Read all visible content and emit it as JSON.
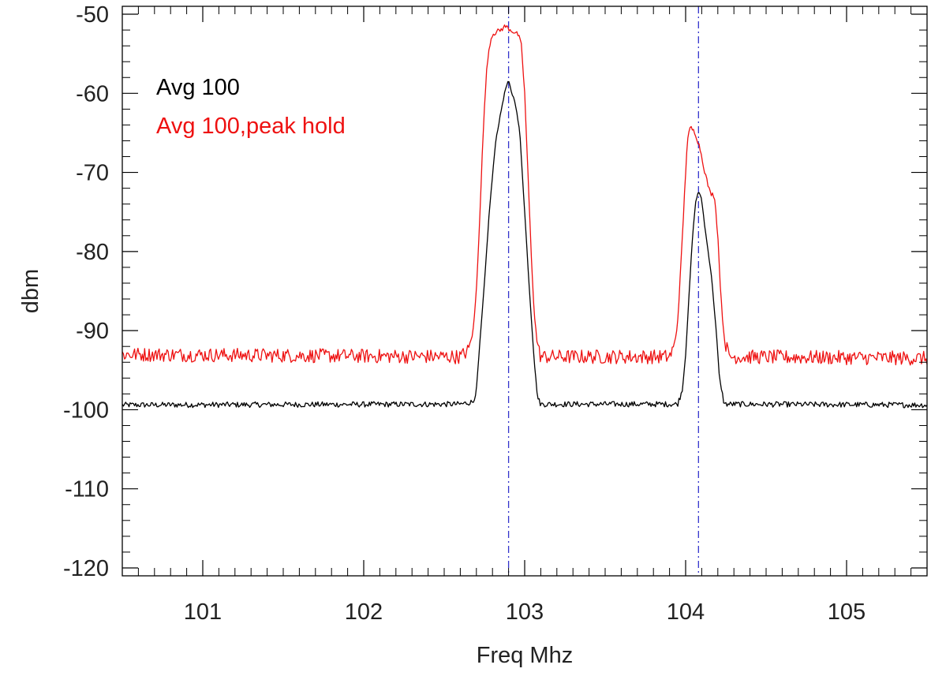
{
  "chart_data": {
    "type": "line",
    "xlabel": "Freq Mhz",
    "ylabel": "dbm",
    "xlim": [
      100.5,
      105.5
    ],
    "ylim": [
      -121,
      -49
    ],
    "x_ticks": [
      101,
      102,
      103,
      104,
      105
    ],
    "x_tick_labels": [
      "101",
      "102",
      "103",
      "104",
      "105"
    ],
    "y_ticks": [
      -50,
      -60,
      -70,
      -80,
      -90,
      -100,
      -110,
      -120
    ],
    "y_tick_labels": [
      "-50",
      "-60",
      "-70",
      "-80",
      "-90",
      "-100",
      "-110",
      "-120"
    ],
    "grid": false,
    "legend_position": "top-left",
    "vlines": [
      {
        "x": 102.9,
        "color": "#3333cc",
        "style": "dash-dot"
      },
      {
        "x": 104.08,
        "color": "#3333cc",
        "style": "dash-dot"
      }
    ],
    "series": [
      {
        "name": "Avg 100",
        "color": "#000000",
        "baseline": -99.3,
        "noise": 0.35,
        "points": [
          [
            100.5,
            -99.4
          ],
          [
            102.6,
            -99.3
          ],
          [
            102.68,
            -99.0
          ],
          [
            102.7,
            -97.5
          ],
          [
            102.72,
            -92.0
          ],
          [
            102.75,
            -84.0
          ],
          [
            102.78,
            -75.0
          ],
          [
            102.82,
            -66.0
          ],
          [
            102.86,
            -61.5
          ],
          [
            102.88,
            -59.5
          ],
          [
            102.9,
            -58.4
          ],
          [
            102.92,
            -60.0
          ],
          [
            102.94,
            -61.0
          ],
          [
            102.97,
            -65.0
          ],
          [
            103.0,
            -75.0
          ],
          [
            103.03,
            -85.0
          ],
          [
            103.06,
            -94.0
          ],
          [
            103.08,
            -98.5
          ],
          [
            103.1,
            -99.3
          ],
          [
            103.95,
            -99.3
          ],
          [
            103.98,
            -97.5
          ],
          [
            104.0,
            -93.0
          ],
          [
            104.02,
            -86.0
          ],
          [
            104.04,
            -79.0
          ],
          [
            104.06,
            -74.0
          ],
          [
            104.08,
            -72.3
          ],
          [
            104.1,
            -73.5
          ],
          [
            104.12,
            -77.0
          ],
          [
            104.14,
            -80.0
          ],
          [
            104.16,
            -83.0
          ],
          [
            104.19,
            -90.0
          ],
          [
            104.21,
            -96.0
          ],
          [
            104.24,
            -99.3
          ],
          [
            105.5,
            -99.4
          ]
        ]
      },
      {
        "name": "Avg 100,peak hold",
        "color": "#ee1111",
        "baseline": -93.3,
        "noise": 0.9,
        "points": [
          [
            100.5,
            -93.0
          ],
          [
            102.6,
            -93.3
          ],
          [
            102.65,
            -92.5
          ],
          [
            102.68,
            -90.0
          ],
          [
            102.7,
            -85.0
          ],
          [
            102.72,
            -76.0
          ],
          [
            102.74,
            -66.0
          ],
          [
            102.76,
            -58.0
          ],
          [
            102.78,
            -54.0
          ],
          [
            102.8,
            -52.5
          ],
          [
            102.85,
            -52.0
          ],
          [
            102.88,
            -51.5
          ],
          [
            102.9,
            -51.8
          ],
          [
            102.93,
            -52.2
          ],
          [
            102.96,
            -52.6
          ],
          [
            102.98,
            -54.0
          ],
          [
            103.0,
            -60.0
          ],
          [
            103.02,
            -70.0
          ],
          [
            103.04,
            -80.0
          ],
          [
            103.06,
            -88.0
          ],
          [
            103.08,
            -92.0
          ],
          [
            103.1,
            -93.3
          ],
          [
            103.9,
            -93.3
          ],
          [
            103.93,
            -92.0
          ],
          [
            103.95,
            -89.0
          ],
          [
            103.97,
            -82.0
          ],
          [
            103.99,
            -74.0
          ],
          [
            104.01,
            -66.0
          ],
          [
            104.03,
            -64.3
          ],
          [
            104.06,
            -65.0
          ],
          [
            104.09,
            -67.0
          ],
          [
            104.12,
            -70.0
          ],
          [
            104.15,
            -72.5
          ],
          [
            104.18,
            -73.0
          ],
          [
            104.2,
            -78.0
          ],
          [
            104.22,
            -86.0
          ],
          [
            104.24,
            -91.0
          ],
          [
            104.27,
            -93.3
          ],
          [
            105.5,
            -93.5
          ]
        ]
      }
    ]
  }
}
